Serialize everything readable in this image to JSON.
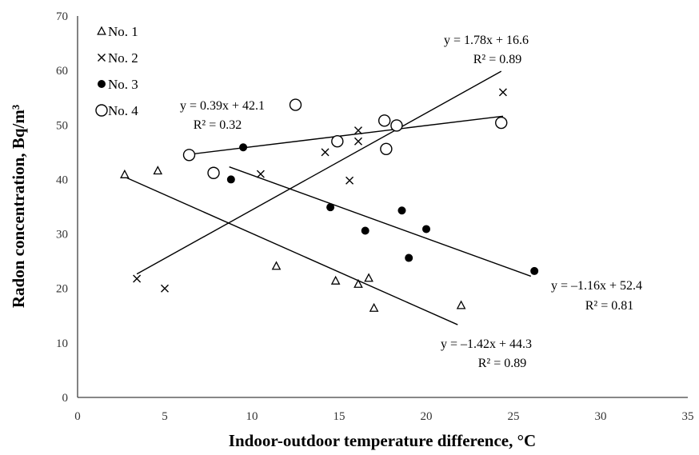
{
  "chart_data": {
    "type": "scatter",
    "xlabel": "Indoor-outdoor temperature difference, °C",
    "ylabel": "Radon concentration, Bq/m³",
    "xlim": [
      0,
      35
    ],
    "ylim": [
      0,
      70
    ],
    "xticks": [
      0,
      5,
      10,
      15,
      20,
      25,
      30,
      35
    ],
    "yticks": [
      0,
      10,
      20,
      30,
      40,
      50,
      60,
      70
    ],
    "grid": false,
    "legend_position": "top-left",
    "series": [
      {
        "name": "No. 1",
        "marker": "triangle",
        "x": [
          2.7,
          4.6,
          11.4,
          14.8,
          16.1,
          16.7,
          17.0,
          22.0
        ],
        "y": [
          40.9,
          41.6,
          24.1,
          21.4,
          20.8,
          21.9,
          16.4,
          16.9
        ],
        "fit": {
          "x": [
            2.7,
            21.8
          ],
          "equation": "y = –1.42x + 44.3",
          "r2": "R² = 0.89"
        }
      },
      {
        "name": "No. 2",
        "marker": "x",
        "x": [
          3.4,
          5.0,
          10.5,
          14.2,
          15.6,
          16.1,
          16.1,
          24.4
        ],
        "y": [
          21.8,
          20.0,
          41.0,
          45.0,
          39.8,
          49.0,
          47.0,
          56.0
        ],
        "fit": {
          "x": [
            3.4,
            24.3
          ],
          "equation": "y = 1.78x + 16.6",
          "r2": "R² = 0.89"
        }
      },
      {
        "name": "No. 3",
        "marker": "filled-circle",
        "x": [
          8.8,
          9.5,
          14.5,
          16.5,
          18.6,
          19.0,
          20.0,
          26.2
        ],
        "y": [
          40.0,
          45.9,
          34.9,
          30.6,
          34.3,
          25.6,
          30.9,
          23.2
        ],
        "fit": {
          "x": [
            8.7,
            26.0
          ],
          "equation": "y = –1.16x + 52.4",
          "r2": "R² = 0.81"
        }
      },
      {
        "name": "No. 4",
        "marker": "open-circle",
        "x": [
          6.4,
          7.8,
          12.5,
          14.9,
          17.6,
          17.7,
          18.3,
          24.3
        ],
        "y": [
          44.5,
          41.2,
          53.7,
          47.0,
          50.8,
          45.6,
          49.9,
          50.4
        ],
        "fit": {
          "x": [
            6.1,
            24.4
          ],
          "equation": "y = 0.39x + 42.1",
          "r2": "R² = 0.32"
        }
      }
    ]
  }
}
